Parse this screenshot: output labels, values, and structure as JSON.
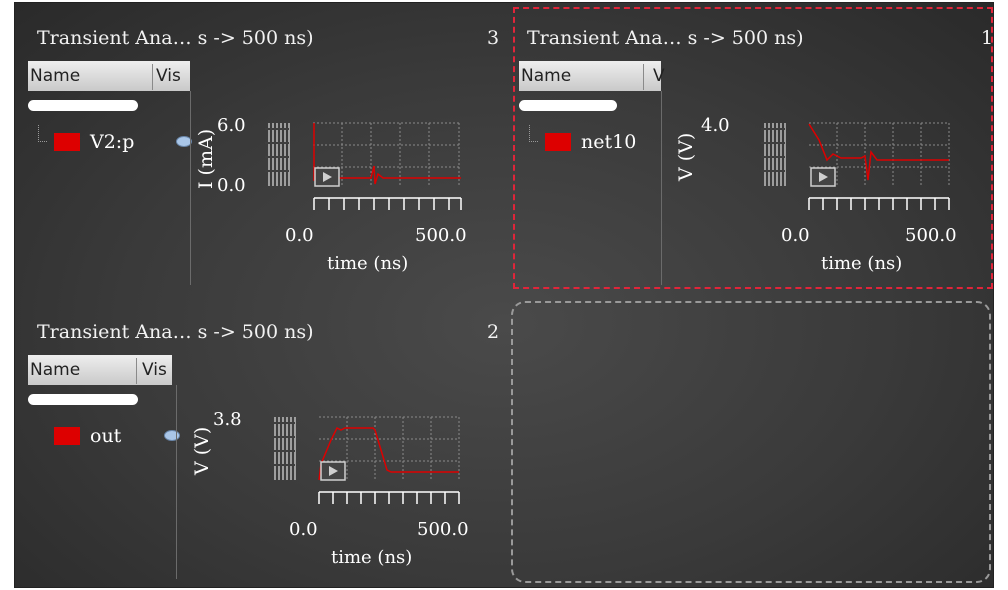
{
  "panels": [
    {
      "title": "Transient Ana… s -> 500 ns)",
      "number": "3",
      "col_name": "Name",
      "col_vis": "Vis",
      "signal": "V2:p",
      "signal_color": "#dd0000",
      "y_label": "I (mA)",
      "y_ticks": [
        "6.0",
        "0.0"
      ],
      "x_ticks": [
        "0.0",
        "500.0"
      ],
      "x_label": "time (ns)"
    },
    {
      "title": "Transient Ana… s -> 500 ns)",
      "number": "1",
      "col_name": "Name",
      "col_vis": "V",
      "signal": "net10",
      "signal_color": "#dd0000",
      "y_label": "V (V)",
      "y_ticks": [
        "4.0"
      ],
      "x_ticks": [
        "0.0",
        "500.0"
      ],
      "x_label": "time (ns)"
    },
    {
      "title": "Transient Ana… s -> 500 ns)",
      "number": "2",
      "col_name": "Name",
      "col_vis": "Vis",
      "signal": "out",
      "signal_color": "#dd0000",
      "y_label": "V (V)",
      "y_ticks": [
        "3.8"
      ],
      "x_ticks": [
        "0.0",
        "500.0"
      ],
      "x_label": "time (ns)"
    }
  ],
  "colors": {
    "trace": "#dd0000",
    "active_border": "#e0253a",
    "empty_border": "#9a9a9a"
  }
}
